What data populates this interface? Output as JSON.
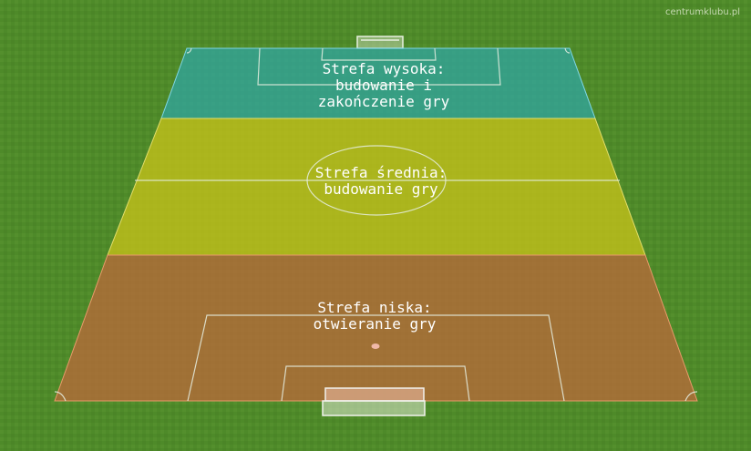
{
  "brand": "centrumklubu.pl",
  "zones": {
    "high": {
      "line1": "Strefa wysoka:",
      "line2": "budowanie i",
      "line3": "zakończenie gry",
      "color": "#3f9a96"
    },
    "middle": {
      "line1": "Strefa średnia:",
      "line2": "budowanie gry",
      "color": "#a9ad22"
    },
    "low": {
      "line1": "Strefa niska:",
      "line2": "otwieranie gry",
      "color": "#a0683a"
    }
  }
}
